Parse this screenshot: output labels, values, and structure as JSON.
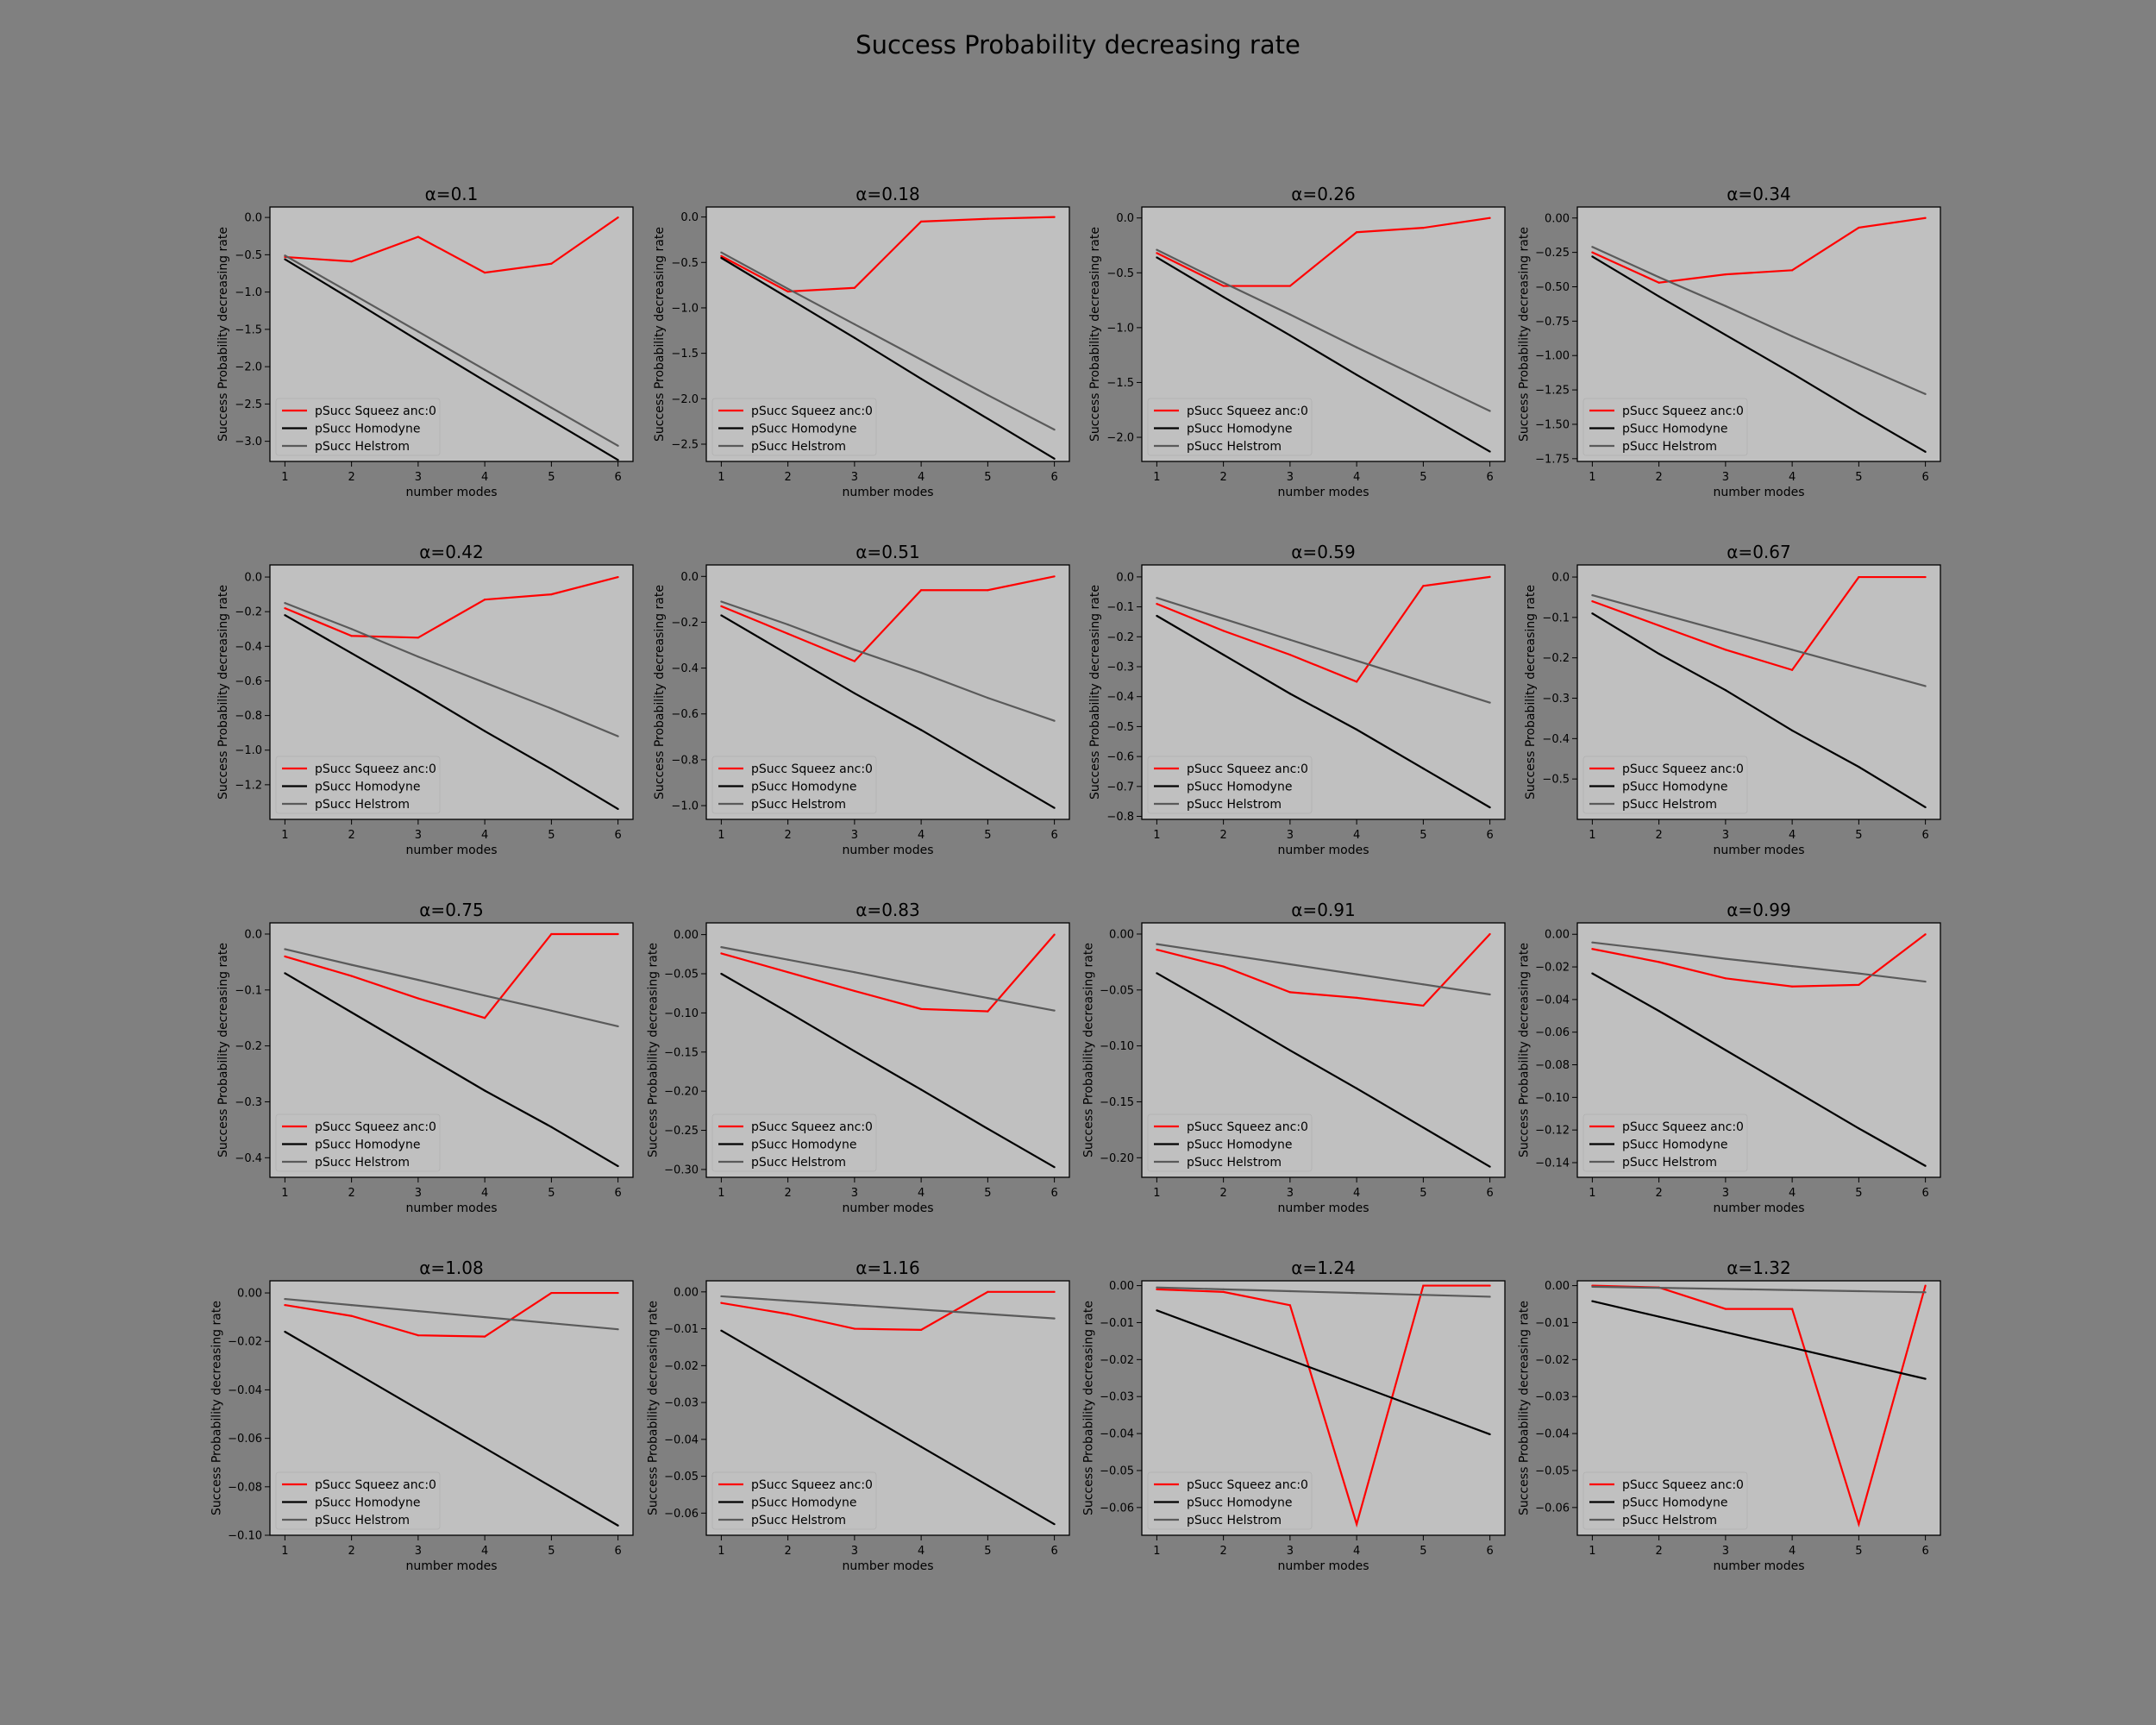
{
  "figure": {
    "suptitle": "Success Probability decreasing rate",
    "background": "#808080",
    "axes_background": "#c0c0c0"
  },
  "chart_data": [
    {
      "type": "line",
      "title": "α=0.1",
      "xlabel": "number modes",
      "ylabel": "Success Probability decreasing rate",
      "x": [
        1,
        2,
        3,
        4,
        5,
        6
      ],
      "yticks": [
        0.0,
        -0.5,
        -1.0,
        -1.5,
        -2.0,
        -2.5,
        -3.0
      ],
      "ylim": [
        -3.27,
        0.14
      ],
      "legend": "lower-left",
      "series": [
        {
          "name": "pSucc Squeez anc:0",
          "color": "#ff0000",
          "values": [
            -0.53,
            -0.59,
            -0.26,
            -0.74,
            -0.62,
            0.0
          ]
        },
        {
          "name": "pSucc Homodyne",
          "color": "#000000",
          "values": [
            -0.56,
            -1.1,
            -1.65,
            -2.19,
            -2.72,
            -3.25
          ]
        },
        {
          "name": "pSucc Helstrom",
          "color": "#5a5a5a",
          "values": [
            -0.51,
            -1.02,
            -1.53,
            -2.04,
            -2.55,
            -3.06
          ]
        }
      ]
    },
    {
      "type": "line",
      "title": "α=0.18",
      "xlabel": "number modes",
      "ylabel": "Success Probability decreasing rate",
      "x": [
        1,
        2,
        3,
        4,
        5,
        6
      ],
      "yticks": [
        0.0,
        -0.5,
        -1.0,
        -1.5,
        -2.0,
        -2.5
      ],
      "ylim": [
        -2.69,
        0.11
      ],
      "legend": "lower-left",
      "series": [
        {
          "name": "pSucc Squeez anc:0",
          "color": "#ff0000",
          "values": [
            -0.43,
            -0.82,
            -0.78,
            -0.05,
            -0.02,
            0.0
          ]
        },
        {
          "name": "pSucc Homodyne",
          "color": "#000000",
          "values": [
            -0.45,
            -0.89,
            -1.33,
            -1.78,
            -2.22,
            -2.66
          ]
        },
        {
          "name": "pSucc Helstrom",
          "color": "#5a5a5a",
          "values": [
            -0.39,
            -0.79,
            -1.18,
            -1.57,
            -1.96,
            -2.34
          ]
        }
      ]
    },
    {
      "type": "line",
      "title": "α=0.26",
      "xlabel": "number modes",
      "ylabel": "Success Probability decreasing rate",
      "x": [
        1,
        2,
        3,
        4,
        5,
        6
      ],
      "yticks": [
        0.0,
        -0.5,
        -1.0,
        -1.5,
        -2.0
      ],
      "ylim": [
        -2.22,
        0.1
      ],
      "legend": "lower-left",
      "series": [
        {
          "name": "pSucc Squeez anc:0",
          "color": "#ff0000",
          "values": [
            -0.32,
            -0.62,
            -0.62,
            -0.13,
            -0.09,
            0.0
          ]
        },
        {
          "name": "pSucc Homodyne",
          "color": "#000000",
          "values": [
            -0.36,
            -0.72,
            -1.07,
            -1.43,
            -1.78,
            -2.13
          ]
        },
        {
          "name": "pSucc Helstrom",
          "color": "#5a5a5a",
          "values": [
            -0.29,
            -0.59,
            -0.88,
            -1.18,
            -1.47,
            -1.76
          ]
        }
      ]
    },
    {
      "type": "line",
      "title": "α=0.34",
      "xlabel": "number modes",
      "ylabel": "Success Probability decreasing rate",
      "x": [
        1,
        2,
        3,
        4,
        5,
        6
      ],
      "yticks": [
        0.0,
        -0.25,
        -0.5,
        -0.75,
        -1.0,
        -1.25,
        -1.5,
        -1.75
      ],
      "ylim": [
        -1.77,
        0.08
      ],
      "legend": "lower-left",
      "series": [
        {
          "name": "pSucc Squeez anc:0",
          "color": "#ff0000",
          "values": [
            -0.25,
            -0.47,
            -0.41,
            -0.38,
            -0.07,
            0.0
          ]
        },
        {
          "name": "pSucc Homodyne",
          "color": "#000000",
          "values": [
            -0.28,
            -0.57,
            -0.85,
            -1.13,
            -1.42,
            -1.7
          ]
        },
        {
          "name": "pSucc Helstrom",
          "color": "#5a5a5a",
          "values": [
            -0.21,
            -0.43,
            -0.64,
            -0.86,
            -1.07,
            -1.28
          ]
        }
      ]
    },
    {
      "type": "line",
      "title": "α=0.42",
      "xlabel": "number modes",
      "ylabel": "Success Probability decreasing rate",
      "x": [
        1,
        2,
        3,
        4,
        5,
        6
      ],
      "yticks": [
        0.0,
        -0.2,
        -0.4,
        -0.6,
        -0.8,
        -1.0,
        -1.2
      ],
      "ylim": [
        -1.4,
        0.07
      ],
      "legend": "lower-left",
      "series": [
        {
          "name": "pSucc Squeez anc:0",
          "color": "#ff0000",
          "values": [
            -0.18,
            -0.34,
            -0.35,
            -0.13,
            -0.1,
            0.0
          ]
        },
        {
          "name": "pSucc Homodyne",
          "color": "#000000",
          "values": [
            -0.22,
            -0.44,
            -0.66,
            -0.89,
            -1.11,
            -1.34
          ]
        },
        {
          "name": "pSucc Helstrom",
          "color": "#5a5a5a",
          "values": [
            -0.15,
            -0.3,
            -0.46,
            -0.61,
            -0.76,
            -0.92
          ]
        }
      ]
    },
    {
      "type": "line",
      "title": "α=0.51",
      "xlabel": "number modes",
      "ylabel": "Success Probability decreasing rate",
      "x": [
        1,
        2,
        3,
        4,
        5,
        6
      ],
      "yticks": [
        0.0,
        -0.2,
        -0.4,
        -0.6,
        -0.8,
        -1.0
      ],
      "ylim": [
        -1.06,
        0.05
      ],
      "legend": "lower-left",
      "series": [
        {
          "name": "pSucc Squeez anc:0",
          "color": "#ff0000",
          "values": [
            -0.13,
            -0.25,
            -0.37,
            -0.06,
            -0.06,
            0.0
          ]
        },
        {
          "name": "pSucc Homodyne",
          "color": "#000000",
          "values": [
            -0.17,
            -0.34,
            -0.51,
            -0.67,
            -0.84,
            -1.01
          ]
        },
        {
          "name": "pSucc Helstrom",
          "color": "#5a5a5a",
          "values": [
            -0.11,
            -0.21,
            -0.32,
            -0.42,
            -0.53,
            -0.63
          ]
        }
      ]
    },
    {
      "type": "line",
      "title": "α=0.59",
      "xlabel": "number modes",
      "ylabel": "Success Probability decreasing rate",
      "x": [
        1,
        2,
        3,
        4,
        5,
        6
      ],
      "yticks": [
        0.0,
        -0.1,
        -0.2,
        -0.3,
        -0.4,
        -0.5,
        -0.6,
        -0.7,
        -0.8
      ],
      "ylim": [
        -0.81,
        0.04
      ],
      "legend": "lower-left",
      "series": [
        {
          "name": "pSucc Squeez anc:0",
          "color": "#ff0000",
          "values": [
            -0.09,
            -0.18,
            -0.26,
            -0.35,
            -0.03,
            0.0
          ]
        },
        {
          "name": "pSucc Homodyne",
          "color": "#000000",
          "values": [
            -0.13,
            -0.26,
            -0.39,
            -0.51,
            -0.64,
            -0.77
          ]
        },
        {
          "name": "pSucc Helstrom",
          "color": "#5a5a5a",
          "values": [
            -0.07,
            -0.14,
            -0.21,
            -0.28,
            -0.35,
            -0.42
          ]
        }
      ]
    },
    {
      "type": "line",
      "title": "α=0.67",
      "xlabel": "number modes",
      "ylabel": "Success Probability decreasing rate",
      "x": [
        1,
        2,
        3,
        4,
        5,
        6
      ],
      "yticks": [
        0.0,
        -0.1,
        -0.2,
        -0.3,
        -0.4,
        -0.5
      ],
      "ylim": [
        -0.6,
        0.03
      ],
      "legend": "lower-left",
      "series": [
        {
          "name": "pSucc Squeez anc:0",
          "color": "#ff0000",
          "values": [
            -0.06,
            -0.12,
            -0.18,
            -0.23,
            0.0,
            0.0
          ]
        },
        {
          "name": "pSucc Homodyne",
          "color": "#000000",
          "values": [
            -0.09,
            -0.19,
            -0.28,
            -0.38,
            -0.47,
            -0.57
          ]
        },
        {
          "name": "pSucc Helstrom",
          "color": "#5a5a5a",
          "values": [
            -0.045,
            -0.09,
            -0.135,
            -0.18,
            -0.225,
            -0.27
          ]
        }
      ]
    },
    {
      "type": "line",
      "title": "α=0.75",
      "xlabel": "number modes",
      "ylabel": "Success Probability decreasing rate",
      "x": [
        1,
        2,
        3,
        4,
        5,
        6
      ],
      "yticks": [
        0.0,
        -0.1,
        -0.2,
        -0.3,
        -0.4
      ],
      "ylim": [
        -0.435,
        0.02
      ],
      "legend": "lower-left",
      "series": [
        {
          "name": "pSucc Squeez anc:0",
          "color": "#ff0000",
          "values": [
            -0.04,
            -0.075,
            -0.115,
            -0.15,
            0.0,
            0.0
          ]
        },
        {
          "name": "pSucc Homodyne",
          "color": "#000000",
          "values": [
            -0.07,
            -0.14,
            -0.21,
            -0.28,
            -0.345,
            -0.415
          ]
        },
        {
          "name": "pSucc Helstrom",
          "color": "#5a5a5a",
          "values": [
            -0.027,
            -0.055,
            -0.082,
            -0.11,
            -0.137,
            -0.165
          ]
        }
      ]
    },
    {
      "type": "line",
      "title": "α=0.83",
      "xlabel": "number modes",
      "ylabel": "Success Probability decreasing rate",
      "x": [
        1,
        2,
        3,
        4,
        5,
        6
      ],
      "yticks": [
        0.0,
        -0.05,
        -0.1,
        -0.15,
        -0.2,
        -0.25,
        -0.3
      ],
      "ylim": [
        -0.31,
        0.015
      ],
      "legend": "lower-left",
      "series": [
        {
          "name": "pSucc Squeez anc:0",
          "color": "#ff0000",
          "values": [
            -0.024,
            -0.048,
            -0.072,
            -0.095,
            -0.098,
            0.0
          ]
        },
        {
          "name": "pSucc Homodyne",
          "color": "#000000",
          "values": [
            -0.05,
            -0.099,
            -0.149,
            -0.198,
            -0.248,
            -0.297
          ]
        },
        {
          "name": "pSucc Helstrom",
          "color": "#5a5a5a",
          "values": [
            -0.016,
            -0.032,
            -0.048,
            -0.065,
            -0.081,
            -0.097
          ]
        }
      ]
    },
    {
      "type": "line",
      "title": "α=0.91",
      "xlabel": "number modes",
      "ylabel": "Success Probability decreasing rate",
      "x": [
        1,
        2,
        3,
        4,
        5,
        6
      ],
      "yticks": [
        0.0,
        -0.05,
        -0.1,
        -0.15,
        -0.2
      ],
      "ylim": [
        -0.2175,
        0.01
      ],
      "legend": "lower-left",
      "series": [
        {
          "name": "pSucc Squeez anc:0",
          "color": "#ff0000",
          "values": [
            -0.014,
            -0.029,
            -0.052,
            -0.057,
            -0.064,
            0.0
          ]
        },
        {
          "name": "pSucc Homodyne",
          "color": "#000000",
          "values": [
            -0.035,
            -0.069,
            -0.104,
            -0.138,
            -0.173,
            -0.208
          ]
        },
        {
          "name": "pSucc Helstrom",
          "color": "#5a5a5a",
          "values": [
            -0.009,
            -0.018,
            -0.027,
            -0.036,
            -0.045,
            -0.054
          ]
        }
      ]
    },
    {
      "type": "line",
      "title": "α=0.99",
      "xlabel": "number modes",
      "ylabel": "Success Probability decreasing rate",
      "x": [
        1,
        2,
        3,
        4,
        5,
        6
      ],
      "yticks": [
        0.0,
        -0.02,
        -0.04,
        -0.06,
        -0.08,
        -0.1,
        -0.12,
        -0.14
      ],
      "ylim": [
        -0.149,
        0.007
      ],
      "legend": "lower-left",
      "series": [
        {
          "name": "pSucc Squeez anc:0",
          "color": "#ff0000",
          "values": [
            -0.009,
            -0.017,
            -0.027,
            -0.032,
            -0.031,
            0.0
          ]
        },
        {
          "name": "pSucc Homodyne",
          "color": "#000000",
          "values": [
            -0.024,
            -0.047,
            -0.071,
            -0.095,
            -0.119,
            -0.142
          ]
        },
        {
          "name": "pSucc Helstrom",
          "color": "#5a5a5a",
          "values": [
            -0.005,
            -0.0098,
            -0.015,
            -0.0195,
            -0.024,
            -0.029
          ]
        }
      ]
    },
    {
      "type": "line",
      "title": "α=1.08",
      "xlabel": "number modes",
      "ylabel": "Success Probability decreasing rate",
      "x": [
        1,
        2,
        3,
        4,
        5,
        6
      ],
      "yticks": [
        0.0,
        -0.02,
        -0.04,
        -0.06,
        -0.08,
        -0.1
      ],
      "ylim": [
        -0.1,
        0.005
      ],
      "legend": "lower-left",
      "series": [
        {
          "name": "pSucc Squeez anc:0",
          "color": "#ff0000",
          "values": [
            -0.005,
            -0.0095,
            -0.0175,
            -0.018,
            0.0,
            0.0
          ]
        },
        {
          "name": "pSucc Homodyne",
          "color": "#000000",
          "values": [
            -0.016,
            -0.032,
            -0.048,
            -0.064,
            -0.08,
            -0.096
          ]
        },
        {
          "name": "pSucc Helstrom",
          "color": "#5a5a5a",
          "values": [
            -0.0025,
            -0.005,
            -0.0075,
            -0.01,
            -0.0125,
            -0.015
          ]
        }
      ]
    },
    {
      "type": "line",
      "title": "α=1.16",
      "xlabel": "number modes",
      "ylabel": "Success Probability decreasing rate",
      "x": [
        1,
        2,
        3,
        4,
        5,
        6
      ],
      "yticks": [
        0.0,
        -0.01,
        -0.02,
        -0.03,
        -0.04,
        -0.05,
        -0.06
      ],
      "ylim": [
        -0.066,
        0.003
      ],
      "legend": "lower-left",
      "series": [
        {
          "name": "pSucc Squeez anc:0",
          "color": "#ff0000",
          "values": [
            -0.003,
            -0.006,
            -0.01,
            -0.0103,
            0.0,
            0.0
          ]
        },
        {
          "name": "pSucc Homodyne",
          "color": "#000000",
          "values": [
            -0.0105,
            -0.021,
            -0.0315,
            -0.042,
            -0.0525,
            -0.063
          ]
        },
        {
          "name": "pSucc Helstrom",
          "color": "#5a5a5a",
          "values": [
            -0.0012,
            -0.0024,
            -0.0036,
            -0.0048,
            -0.006,
            -0.0072
          ]
        }
      ]
    },
    {
      "type": "line",
      "title": "α=1.24",
      "xlabel": "number modes",
      "ylabel": "Success Probability decreasing rate",
      "x": [
        1,
        2,
        3,
        4,
        5,
        6
      ],
      "yticks": [
        0.0,
        -0.01,
        -0.02,
        -0.03,
        -0.04,
        -0.05,
        -0.06
      ],
      "ylim": [
        -0.0675,
        0.0013
      ],
      "legend": "lower-left",
      "series": [
        {
          "name": "pSucc Squeez anc:0",
          "color": "#ff0000",
          "values": [
            -0.001,
            -0.0017,
            -0.0053,
            -0.0645,
            0.0,
            0.0
          ]
        },
        {
          "name": "pSucc Homodyne",
          "color": "#000000",
          "values": [
            -0.0067,
            -0.0134,
            -0.0201,
            -0.0268,
            -0.0335,
            -0.0402
          ]
        },
        {
          "name": "pSucc Helstrom",
          "color": "#5a5a5a",
          "values": [
            -0.0005,
            -0.001,
            -0.0015,
            -0.002,
            -0.0025,
            -0.003
          ]
        }
      ]
    },
    {
      "type": "line",
      "title": "α=1.32",
      "xlabel": "number modes",
      "ylabel": "Success Probability decreasing rate",
      "x": [
        1,
        2,
        3,
        4,
        5,
        6
      ],
      "yticks": [
        0.0,
        -0.01,
        -0.02,
        -0.03,
        -0.04,
        -0.05,
        -0.06
      ],
      "ylim": [
        -0.0675,
        0.0013
      ],
      "legend": "lower-left",
      "series": [
        {
          "name": "pSucc Squeez anc:0",
          "color": "#ff0000",
          "values": [
            0.0,
            -0.0005,
            -0.0063,
            -0.0063,
            -0.0645,
            0.0
          ]
        },
        {
          "name": "pSucc Homodyne",
          "color": "#000000",
          "values": [
            -0.0042,
            -0.0084,
            -0.0126,
            -0.0168,
            -0.021,
            -0.0252
          ]
        },
        {
          "name": "pSucc Helstrom",
          "color": "#5a5a5a",
          "values": [
            -0.0003,
            -0.0006,
            -0.0009,
            -0.0012,
            -0.0015,
            -0.0018
          ]
        }
      ]
    }
  ]
}
